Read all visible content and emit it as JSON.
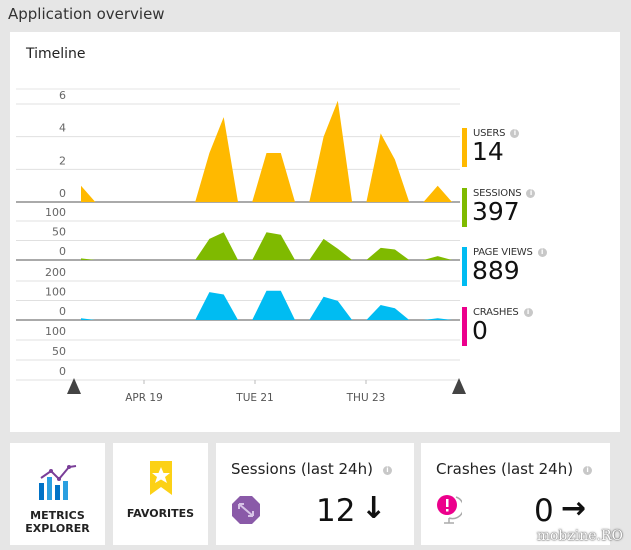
{
  "blade_title": "Application overview",
  "timeline": {
    "title": "Timeline",
    "x_ticks": [
      "APR 19",
      "TUE 21",
      "THU 23"
    ]
  },
  "metrics": [
    {
      "label": "USERS",
      "value": "14",
      "color": "#ffb900"
    },
    {
      "label": "SESSIONS",
      "value": "397",
      "color": "#7fba00"
    },
    {
      "label": "PAGE VIEWS",
      "value": "889",
      "color": "#00bcf2"
    },
    {
      "label": "CRASHES",
      "value": "0",
      "color": "#ec008c"
    }
  ],
  "chart_data": [
    {
      "type": "area",
      "name": "Users",
      "y_ticks": [
        "0",
        "2",
        "4",
        "6"
      ],
      "ylim": [
        0,
        6
      ],
      "grid": true,
      "values": [
        1,
        0,
        0,
        0,
        0,
        0,
        0,
        0,
        0,
        3,
        5.2,
        0,
        0,
        3,
        3,
        0,
        0,
        4,
        6.2,
        0,
        0,
        4.2,
        2.6,
        0,
        0,
        1,
        0
      ]
    },
    {
      "type": "area",
      "name": "Sessions",
      "y_ticks": [
        "0",
        "50",
        "100"
      ],
      "ylim": [
        0,
        100
      ],
      "grid": true,
      "values": [
        4,
        0,
        0,
        0,
        0,
        0,
        0,
        0,
        0,
        54,
        71,
        0,
        0,
        71,
        65,
        0,
        0,
        54,
        29,
        0,
        0,
        31,
        27,
        0,
        0,
        10,
        0
      ]
    },
    {
      "type": "area",
      "name": "Page views",
      "y_ticks": [
        "0",
        "100",
        "200"
      ],
      "ylim": [
        0,
        200
      ],
      "grid": true,
      "values": [
        9,
        0,
        0,
        0,
        0,
        0,
        0,
        0,
        0,
        143,
        131,
        0,
        0,
        150,
        150,
        0,
        0,
        119,
        98,
        0,
        0,
        77,
        60,
        0,
        0,
        9,
        0
      ]
    },
    {
      "type": "area",
      "name": "Crashes",
      "y_ticks": [
        "0",
        "50",
        "100"
      ],
      "ylim": [
        0,
        100
      ],
      "grid": true,
      "values": []
    }
  ],
  "tiles": {
    "metrics_explorer": "METRICS EXPLORER",
    "favorites": "FAVORITES",
    "sessions": {
      "title": "Sessions (last 24h)",
      "value": "12",
      "trend": "down"
    },
    "crashes": {
      "title": "Crashes (last 24h)",
      "value": "0",
      "trend": "flat"
    }
  },
  "watermark": "mobzine.RO"
}
